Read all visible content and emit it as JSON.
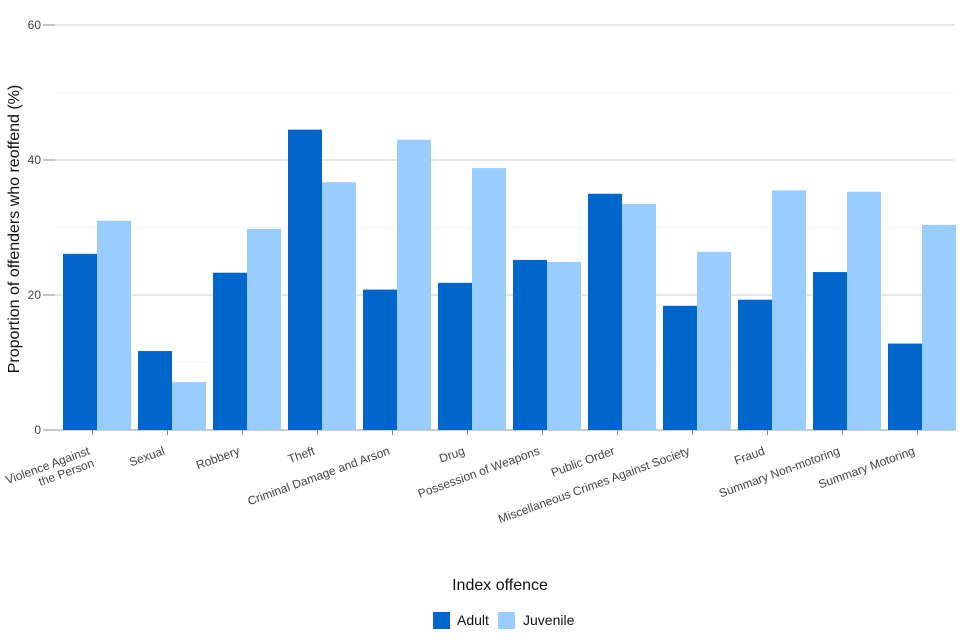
{
  "chart_data": {
    "type": "bar",
    "title": "",
    "xlabel": "Index offence",
    "ylabel": "Proportion of offenders who reoffend (%)",
    "ylim": [
      0,
      60
    ],
    "yticks": [
      0,
      20,
      40,
      60
    ],
    "grid": true,
    "legend_position": "bottom",
    "categories": [
      [
        "Violence Against",
        "the Person"
      ],
      [
        "Sexual"
      ],
      [
        "Robbery"
      ],
      [
        "Theft"
      ],
      [
        "Criminal Damage and Arson"
      ],
      [
        "Drug"
      ],
      [
        "Possession of Weapons"
      ],
      [
        "Public Order"
      ],
      [
        "Miscellaneous Crimes Against Society"
      ],
      [
        "Fraud"
      ],
      [
        "Summary Non-motoring"
      ],
      [
        "Summary Motoring"
      ]
    ],
    "series": [
      {
        "name": "Adult",
        "color": "#0066cc",
        "values": [
          26.1,
          11.7,
          23.3,
          44.5,
          20.8,
          21.8,
          25.2,
          35.0,
          18.4,
          19.3,
          23.4,
          12.8
        ]
      },
      {
        "name": "Juvenile",
        "color": "#99ccff",
        "values": [
          31.0,
          7.1,
          29.8,
          36.7,
          43.0,
          38.8,
          24.9,
          33.5,
          26.4,
          35.5,
          35.3,
          30.4
        ]
      }
    ]
  }
}
